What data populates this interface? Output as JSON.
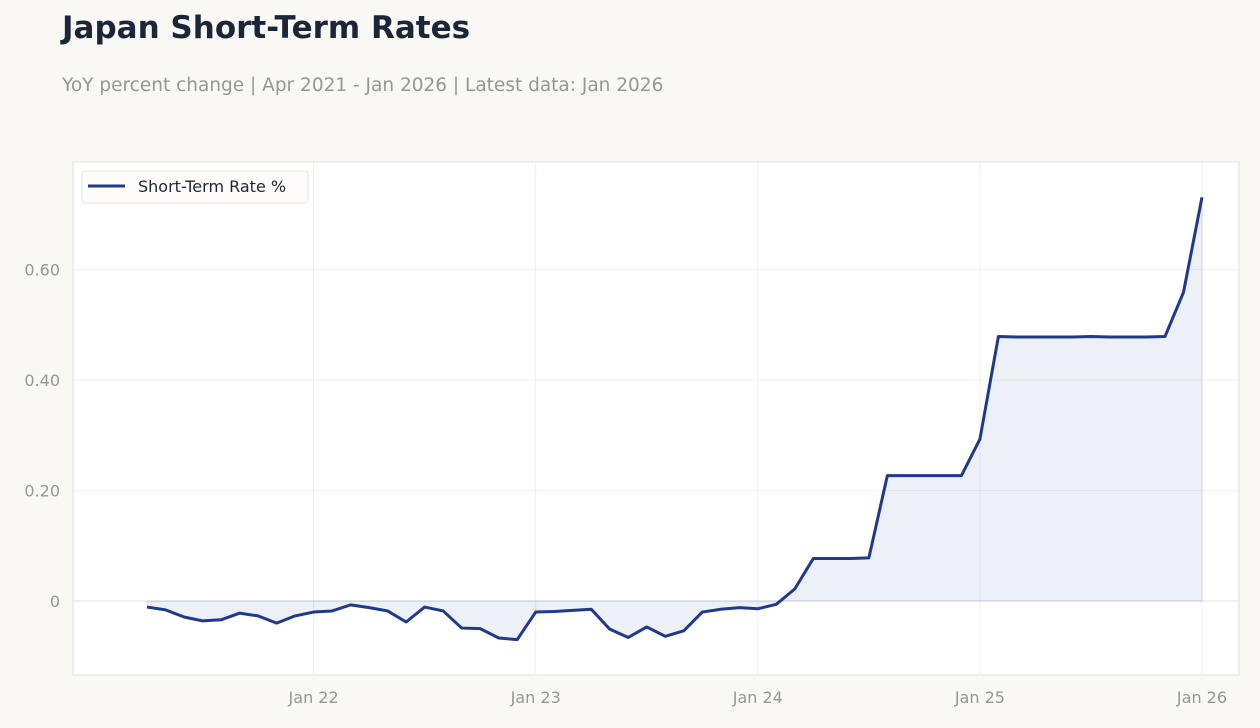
{
  "chart_data": {
    "type": "line",
    "title": "Japan Short-Term Rates",
    "subtitle": "YoY percent change | Apr 2021 - Jan 2026 | Latest data: Jan 2026",
    "xlabel": "",
    "ylabel": "",
    "x_start": "2021-04",
    "x_frequency": "monthly",
    "x_ticks": [
      {
        "label": "Jan 22",
        "date": "2022-01"
      },
      {
        "label": "Jan 23",
        "date": "2023-01"
      },
      {
        "label": "Jan 24",
        "date": "2024-01"
      },
      {
        "label": "Jan 25",
        "date": "2025-01"
      },
      {
        "label": "Jan 26",
        "date": "2026-01"
      }
    ],
    "y_ticks": [
      {
        "label": "0",
        "value": 0
      },
      {
        "label": "0.20",
        "value": 0.2
      },
      {
        "label": "0.40",
        "value": 0.4
      },
      {
        "label": "0.60",
        "value": 0.6
      }
    ],
    "ylim": [
      -0.134,
      0.795
    ],
    "xlim": [
      "2020-12",
      "2026-03"
    ],
    "grid": true,
    "legend": "top-left",
    "series": [
      {
        "name": "Short-Term Rate %",
        "color": "#1f3a8a",
        "fill": "area-to-zero",
        "values": [
          -0.011,
          -0.016,
          -0.029,
          -0.036,
          -0.034,
          -0.022,
          -0.027,
          -0.04,
          -0.027,
          -0.02,
          -0.018,
          -0.007,
          -0.012,
          -0.018,
          -0.038,
          -0.011,
          -0.018,
          -0.049,
          -0.05,
          -0.067,
          -0.07,
          -0.02,
          -0.019,
          -0.017,
          -0.015,
          -0.051,
          -0.066,
          -0.047,
          -0.064,
          -0.054,
          -0.02,
          -0.015,
          -0.012,
          -0.014,
          -0.006,
          0.022,
          0.077,
          0.077,
          0.077,
          0.078,
          0.227,
          0.227,
          0.227,
          0.227,
          0.227,
          0.293,
          0.479,
          0.478,
          0.478,
          0.478,
          0.478,
          0.479,
          0.478,
          0.478,
          0.478,
          0.479,
          0.559,
          0.731
        ]
      }
    ]
  }
}
